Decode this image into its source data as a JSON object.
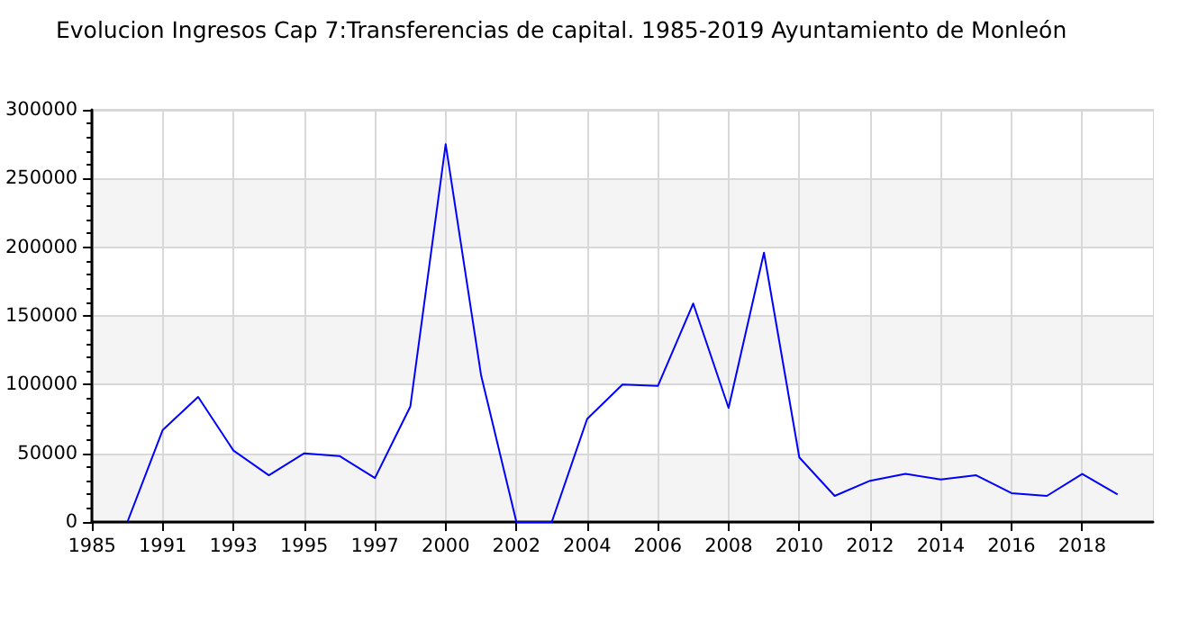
{
  "chart_data": {
    "type": "line",
    "title": "Evolucion Ingresos Cap 7:Transferencias de capital. 1985-2019 Ayuntamiento de Monleón",
    "categories": [
      "1985",
      null,
      "1991",
      null,
      "1993",
      null,
      "1995",
      null,
      "1997",
      null,
      "2000",
      null,
      "2002",
      null,
      "2004",
      null,
      "2006",
      null,
      "2008",
      null,
      "2010",
      null,
      "2012",
      null,
      "2014",
      null,
      "2016",
      null,
      "2018",
      null,
      null
    ],
    "series": [
      {
        "color": "#0000ff",
        "values": [
          null,
          0,
          67000,
          91000,
          52000,
          34000,
          50000,
          48000,
          32000,
          84000,
          275000,
          107000,
          0,
          0,
          75000,
          100000,
          99000,
          159000,
          83000,
          196000,
          47000,
          19000,
          30000,
          35000,
          31000,
          34000,
          21000,
          19000,
          35000,
          20000,
          null
        ]
      }
    ],
    "ylim": [
      0,
      300000
    ],
    "yticks": [
      0,
      50000,
      100000,
      150000,
      200000,
      250000,
      300000
    ],
    "grid": true,
    "marker": "none",
    "line_style": "solid"
  }
}
